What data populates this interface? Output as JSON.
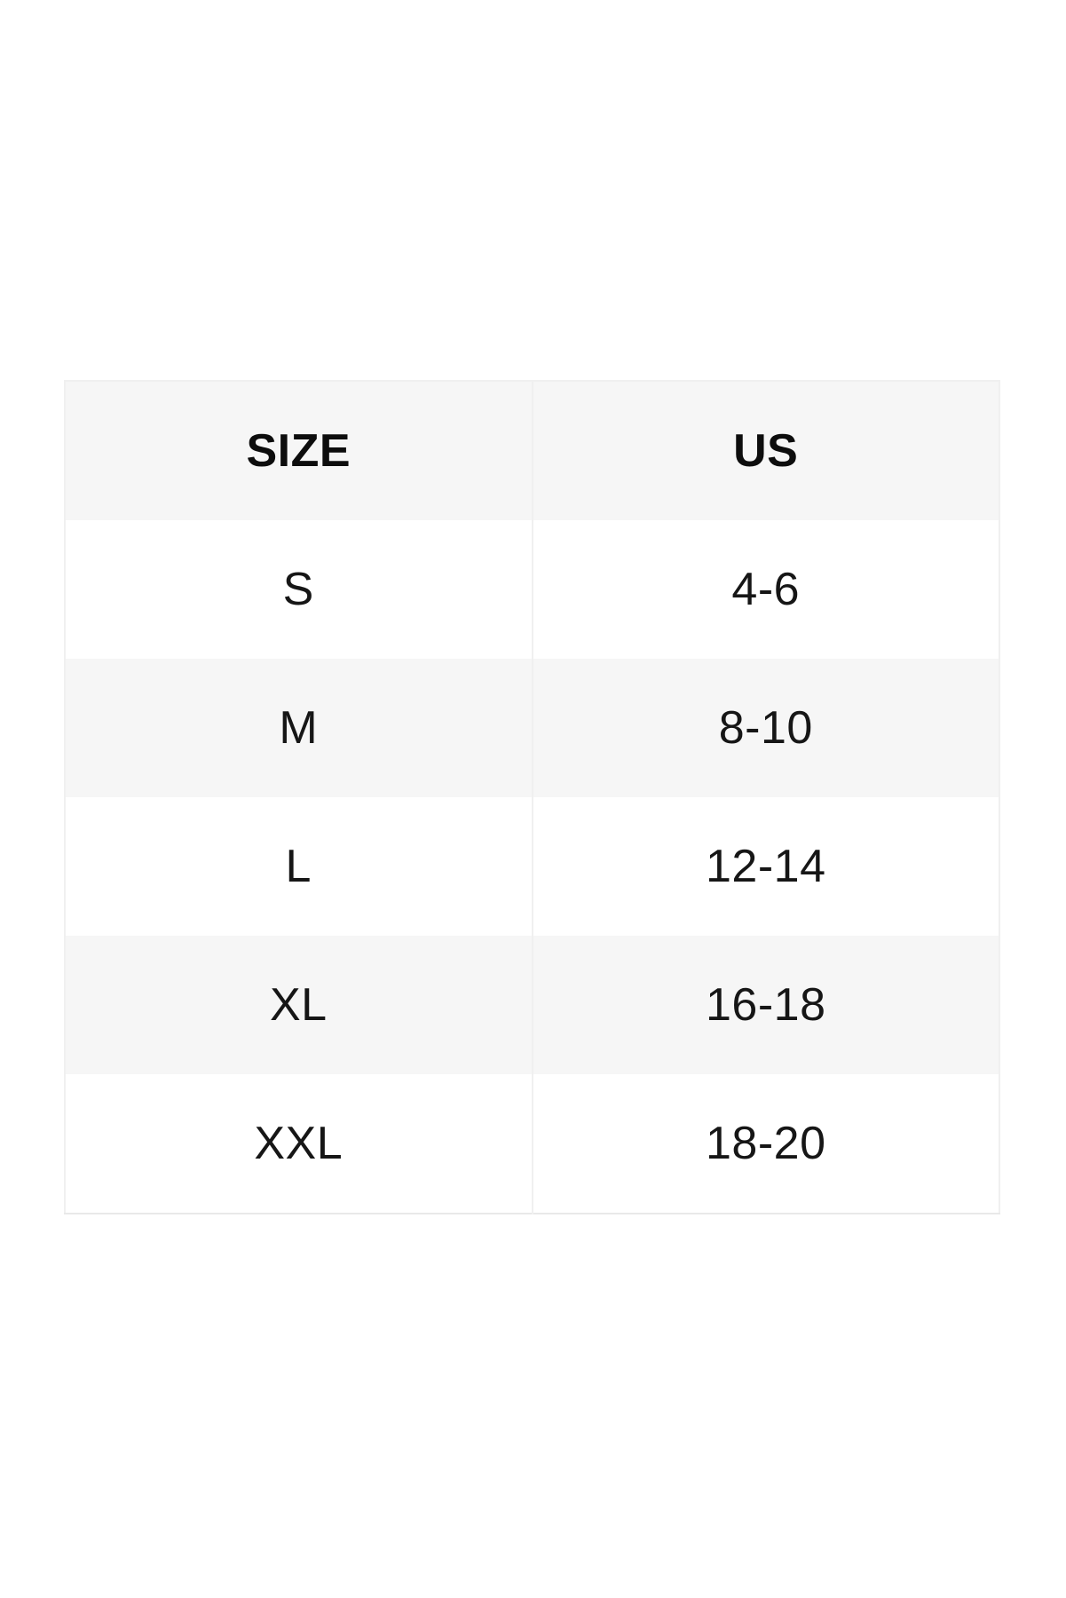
{
  "size_chart": {
    "columns": [
      {
        "label": "SIZE"
      },
      {
        "label": "US"
      }
    ],
    "rows": [
      {
        "size": "S",
        "us": "4-6"
      },
      {
        "size": "M",
        "us": "8-10"
      },
      {
        "size": "L",
        "us": "12-14"
      },
      {
        "size": "XL",
        "us": "16-18"
      },
      {
        "size": "XXL",
        "us": "18-20"
      }
    ]
  },
  "colors": {
    "page_background": "#ffffff",
    "header_background": "#f6f6f6",
    "alt_row_background": "#f6f6f6",
    "divider": "#f0f0f0",
    "bottom_border": "#e9e9e9",
    "text": "#141414"
  }
}
